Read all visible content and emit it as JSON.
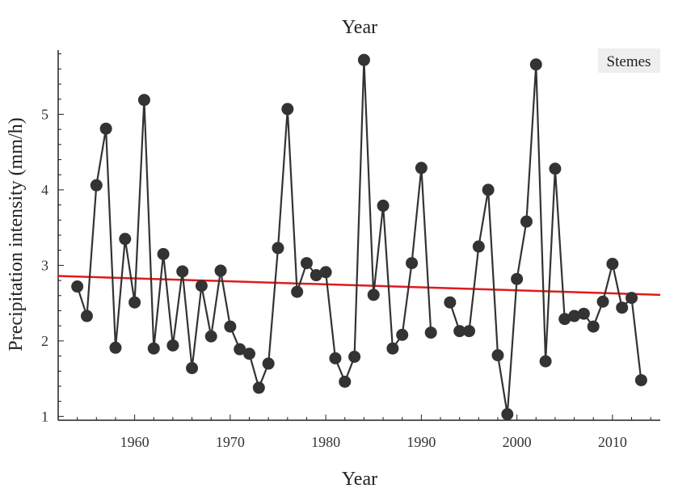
{
  "chart_data": {
    "type": "line",
    "title": "Year",
    "xlabel": "Year",
    "ylabel": "Precipitation intensity (mm/h)",
    "legend": "Stemes",
    "legend_position": "top-right",
    "xlim": [
      1952,
      2015
    ],
    "ylim": [
      0.95,
      5.85
    ],
    "x_ticks": [
      1960,
      1970,
      1980,
      1990,
      2000,
      2010
    ],
    "y_ticks": [
      1,
      2,
      3,
      4,
      5
    ],
    "grid": false,
    "colors": {
      "series": "#333333",
      "trend": "#e11a1a",
      "axis": "#222222"
    },
    "series": [
      {
        "segments": [
          [
            [
              1954,
              2.72
            ],
            [
              1955,
              2.33
            ],
            [
              1956,
              4.06
            ],
            [
              1957,
              4.81
            ],
            [
              1958,
              1.91
            ],
            [
              1959,
              3.35
            ],
            [
              1960,
              2.51
            ],
            [
              1961,
              5.19
            ],
            [
              1962,
              1.9
            ],
            [
              1963,
              3.15
            ],
            [
              1964,
              1.94
            ],
            [
              1965,
              2.92
            ],
            [
              1966,
              1.64
            ],
            [
              1967,
              2.73
            ],
            [
              1968,
              2.06
            ],
            [
              1969,
              2.93
            ],
            [
              1970,
              2.19
            ],
            [
              1971,
              1.89
            ],
            [
              1972,
              1.83
            ],
            [
              1973,
              1.38
            ],
            [
              1974,
              1.7
            ],
            [
              1975,
              3.23
            ],
            [
              1976,
              5.07
            ],
            [
              1977,
              2.65
            ],
            [
              1978,
              3.03
            ],
            [
              1979,
              2.87
            ],
            [
              1980,
              2.91
            ],
            [
              1981,
              1.77
            ],
            [
              1982,
              1.46
            ],
            [
              1983,
              1.79
            ],
            [
              1984,
              5.72
            ],
            [
              1985,
              2.61
            ],
            [
              1986,
              3.79
            ],
            [
              1987,
              1.9
            ],
            [
              1988,
              2.08
            ],
            [
              1989,
              3.03
            ],
            [
              1990,
              4.29
            ],
            [
              1991,
              2.11
            ]
          ],
          [
            [
              1993,
              2.51
            ],
            [
              1994,
              2.13
            ],
            [
              1995,
              2.13
            ],
            [
              1996,
              3.25
            ],
            [
              1997,
              4.0
            ],
            [
              1998,
              1.81
            ],
            [
              1999,
              1.03
            ],
            [
              2000,
              2.82
            ],
            [
              2001,
              3.58
            ],
            [
              2002,
              5.66
            ],
            [
              2003,
              1.73
            ],
            [
              2004,
              4.28
            ],
            [
              2005,
              2.29
            ],
            [
              2006,
              2.33
            ],
            [
              2007,
              2.36
            ],
            [
              2008,
              2.19
            ],
            [
              2009,
              2.52
            ],
            [
              2010,
              3.02
            ],
            [
              2011,
              2.44
            ],
            [
              2012,
              2.57
            ],
            [
              2013,
              1.48
            ]
          ]
        ]
      }
    ],
    "trend_line": {
      "x": [
        1952,
        2015
      ],
      "y": [
        2.86,
        2.61
      ]
    }
  }
}
